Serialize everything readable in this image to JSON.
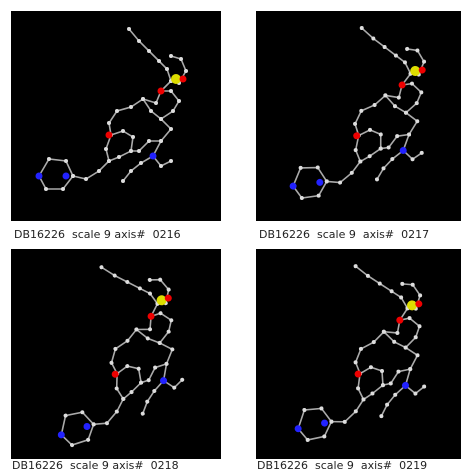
{
  "panels": [
    {
      "caption": "DB16226  scale 9 axis#  0216"
    },
    {
      "caption": "DB16226  scale 9  axis#  0217"
    },
    {
      "caption": "DB16226  scale 9 axis#  0218"
    },
    {
      "caption": "DB16226  scale 9  axis#  0219"
    }
  ]
}
